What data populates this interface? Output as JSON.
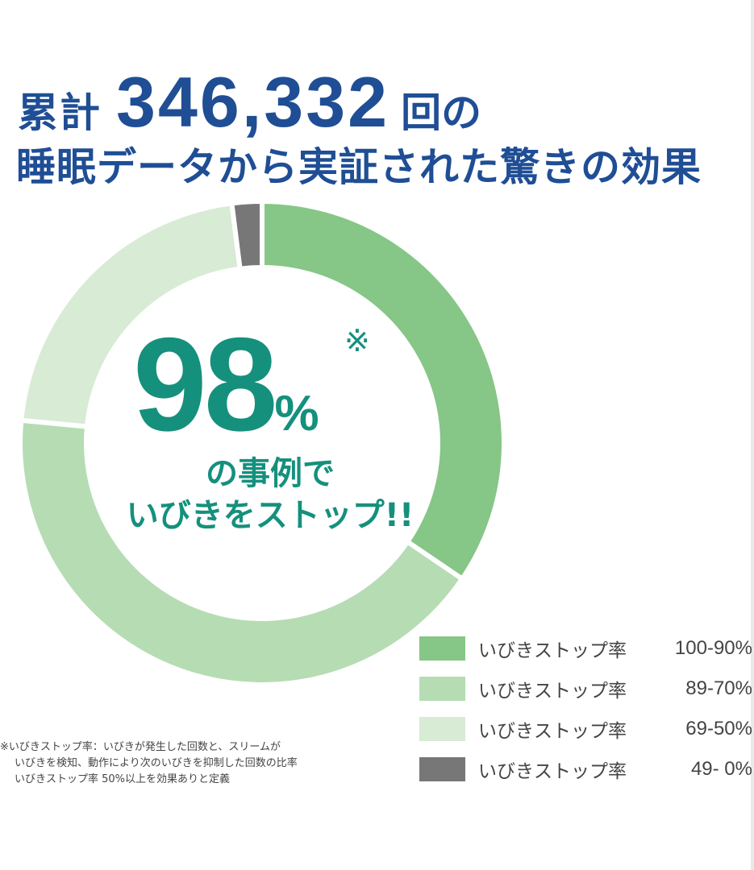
{
  "header": {
    "line1_prefix": "累計",
    "line1_number": "346,332",
    "line1_suffix": "回の",
    "line2": "睡眠データから実証された驚きの効果"
  },
  "center": {
    "percent_number": "98",
    "percent_sign": "%",
    "note_mark": "※",
    "subtitle_line1": "の事例で",
    "subtitle_line2": "いびきをストップ!!"
  },
  "footnote": {
    "lines": [
      "※いびきストップ率：いびきが発生した回数と、スリームが",
      "いびきを検知、動作により次のいびきを抑制した回数の比率",
      "いびきストップ率 50%以上を効果ありと定義"
    ]
  },
  "chart_data": {
    "type": "pie",
    "variant": "donut",
    "start_angle_deg": 0,
    "direction": "clockwise",
    "categories": [
      "いびきストップ率 100-90%",
      "いびきストップ率 89-70%",
      "いびきストップ率 69-50%",
      "いびきストップ率 49- 0%"
    ],
    "legend": [
      {
        "label": "いびきストップ率",
        "range": "100-90%",
        "color": "#86c687"
      },
      {
        "label": "いびきストップ率",
        "range": "89-70%",
        "color": "#b6dcb3"
      },
      {
        "label": "いびきストップ率",
        "range": "69-50%",
        "color": "#d8ebd5"
      },
      {
        "label": "いびきストップ率",
        "range": "49- 0%",
        "color": "#777777"
      }
    ],
    "values": [
      34.5,
      42.0,
      21.5,
      2.0
    ],
    "unit": "%",
    "legend_position": "bottom-right"
  }
}
